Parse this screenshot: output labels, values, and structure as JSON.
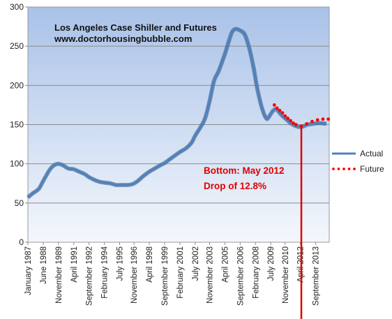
{
  "chart_data": {
    "type": "line",
    "title": "Los Angeles Case Shiller and Futures",
    "subtitle": "www.doctorhousingbubble.com",
    "annotation": [
      "Bottom:  May 2012",
      "Drop of 12.8%"
    ],
    "ylim": [
      0,
      300
    ],
    "yticks": [
      0,
      50,
      100,
      150,
      200,
      250,
      300
    ],
    "xlim": [
      "1987-01",
      "2014-12"
    ],
    "xtick_labels": [
      "January 1987",
      "June 1988",
      "November 1989",
      "April 1991",
      "September 1992",
      "February 1994",
      "July 1995",
      "November 1996",
      "April 1998",
      "September 1999",
      "February 2001",
      "July 2002",
      "November 2003",
      "April 2005",
      "September 2006",
      "February 2008",
      "July 2009",
      "November 2010",
      "April 2012",
      "September 2013"
    ],
    "xtick_dates": [
      "1987-01",
      "1988-06",
      "1989-11",
      "1991-04",
      "1992-09",
      "1994-02",
      "1995-07",
      "1996-11",
      "1998-04",
      "1999-09",
      "2001-02",
      "2002-07",
      "2003-11",
      "2005-04",
      "2006-09",
      "2008-02",
      "2009-07",
      "2010-11",
      "2012-04",
      "2013-09"
    ],
    "bottom_marker": {
      "x": "2012-05",
      "y": 148
    },
    "grid": true,
    "legend_position": "right",
    "series": [
      {
        "name": "Actual",
        "color": "#4f81bd",
        "style": "solid",
        "points": [
          [
            "1987-01",
            57
          ],
          [
            "1987-06",
            62
          ],
          [
            "1988-01",
            68
          ],
          [
            "1988-06",
            78
          ],
          [
            "1989-01",
            92
          ],
          [
            "1989-06",
            98
          ],
          [
            "1989-11",
            100
          ],
          [
            "1990-04",
            98
          ],
          [
            "1990-10",
            94
          ],
          [
            "1991-04",
            93
          ],
          [
            "1991-10",
            90
          ],
          [
            "1992-04",
            87
          ],
          [
            "1992-09",
            83
          ],
          [
            "1993-04",
            79
          ],
          [
            "1993-09",
            77
          ],
          [
            "1994-02",
            76
          ],
          [
            "1994-09",
            75
          ],
          [
            "1995-03",
            73
          ],
          [
            "1995-09",
            73
          ],
          [
            "1996-03",
            73
          ],
          [
            "1996-09",
            74
          ],
          [
            "1997-03",
            78
          ],
          [
            "1997-09",
            84
          ],
          [
            "1998-04",
            90
          ],
          [
            "1998-10",
            94
          ],
          [
            "1999-04",
            98
          ],
          [
            "1999-09",
            101
          ],
          [
            "2000-03",
            106
          ],
          [
            "2000-09",
            111
          ],
          [
            "2001-02",
            115
          ],
          [
            "2001-09",
            120
          ],
          [
            "2002-03",
            127
          ],
          [
            "2002-07",
            136
          ],
          [
            "2002-12",
            145
          ],
          [
            "2003-06",
            158
          ],
          [
            "2003-11",
            180
          ],
          [
            "2004-04",
            206
          ],
          [
            "2004-09",
            218
          ],
          [
            "2005-04",
            240
          ],
          [
            "2005-08",
            255
          ],
          [
            "2005-12",
            268
          ],
          [
            "2006-04",
            272
          ],
          [
            "2006-09",
            270
          ],
          [
            "2007-02",
            265
          ],
          [
            "2007-07",
            248
          ],
          [
            "2007-12",
            222
          ],
          [
            "2008-04",
            196
          ],
          [
            "2008-09",
            172
          ],
          [
            "2009-02",
            158
          ],
          [
            "2009-05",
            160
          ],
          [
            "2009-09",
            167
          ],
          [
            "2010-01",
            170
          ],
          [
            "2010-04",
            166
          ],
          [
            "2010-08",
            161
          ],
          [
            "2010-12",
            157
          ],
          [
            "2011-05",
            152
          ],
          [
            "2011-11",
            148
          ],
          [
            "2012-05",
            147
          ],
          [
            "2012-12",
            150
          ],
          [
            "2013-06",
            151
          ],
          [
            "2014-01",
            152
          ],
          [
            "2014-09",
            151
          ]
        ]
      },
      {
        "name": "Future",
        "color": "#ff0000",
        "style": "dotted",
        "points": [
          [
            "2009-11",
            175
          ],
          [
            "2010-02",
            171
          ],
          [
            "2010-05",
            168
          ],
          [
            "2010-08",
            165
          ],
          [
            "2010-11",
            161
          ],
          [
            "2011-02",
            158
          ],
          [
            "2011-05",
            155
          ],
          [
            "2011-08",
            152
          ],
          [
            "2011-11",
            150
          ],
          [
            "2012-05",
            148
          ],
          [
            "2012-11",
            151
          ],
          [
            "2013-05",
            154
          ],
          [
            "2013-11",
            156
          ],
          [
            "2014-05",
            157
          ],
          [
            "2014-11",
            157
          ]
        ]
      }
    ]
  }
}
